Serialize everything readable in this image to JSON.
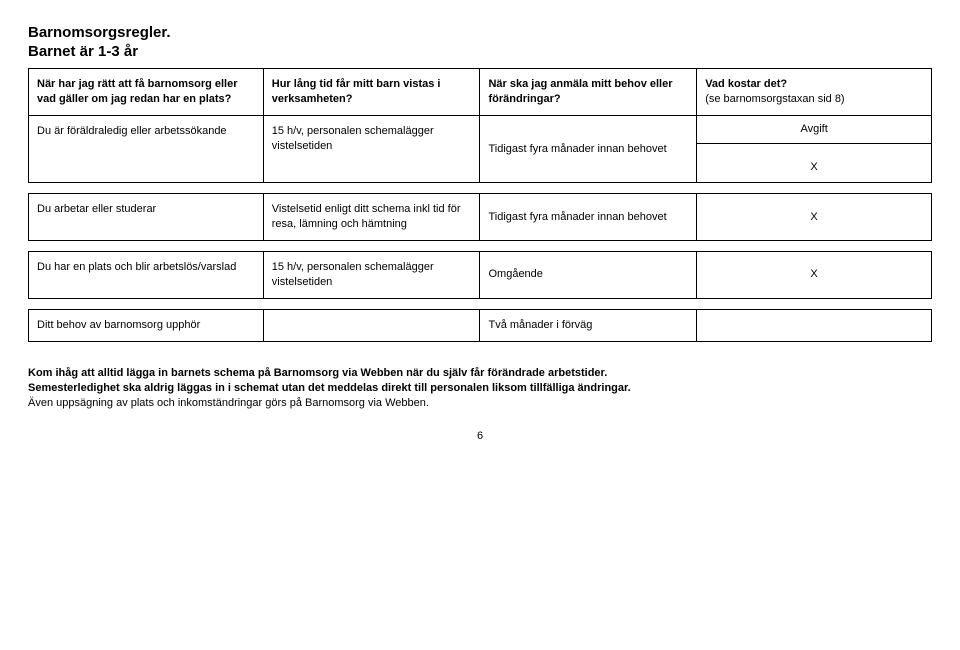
{
  "title": "Barnomsorgsregler.",
  "subtitle": "Barnet är 1-3 år",
  "headers": {
    "c1": "När har jag rätt att få barnomsorg eller vad gäller om jag redan har en plats?",
    "c2": "Hur lång tid får mitt barn vistas i verksamheten?",
    "c3": "När ska jag anmäla mitt behov eller förändringar?",
    "c4_main": "Vad kostar det?",
    "c4_small": "(se barnomsorgstaxan sid 8)"
  },
  "rows": [
    {
      "c1": "Du är föräldraledig eller arbetssökande",
      "c2": "15 h/v, personalen schemalägger vistelsetiden",
      "c3": "Tidigast fyra månader innan behovet",
      "avgift_label": "Avgift",
      "avgift_value": "X"
    },
    {
      "c1": "Du arbetar eller studerar",
      "c2": "Vistelsetid enligt ditt schema inkl tid för resa, lämning och hämtning",
      "c3": "Tidigast fyra månader innan behovet",
      "c4": "X"
    },
    {
      "c1": "Du har en plats och blir arbetslös/varslad",
      "c2": "15 h/v, personalen schemalägger vistelsetiden",
      "c3": "Omgående",
      "c4": "X"
    },
    {
      "c1": "Ditt behov av barnomsorg upphör",
      "c2": "",
      "c3": "Två månader i förväg",
      "c4": ""
    }
  ],
  "footer": {
    "line1_bold": "Kom ihåg att alltid lägga in barnets schema på Barnomsorg via Webben när du själv får förändrade arbetstider.",
    "line2_bold": "Semesterledighet ska aldrig läggas in i schemat utan det meddelas direkt till personalen liksom tillfälliga ändringar.",
    "line3": "Även uppsägning av plats och inkomständringar görs på Barnomsorg via Webben."
  },
  "page_number": "6"
}
